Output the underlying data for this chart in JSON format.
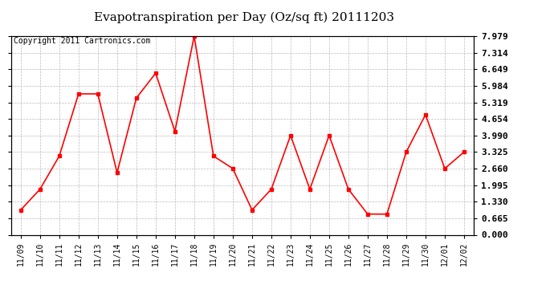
{
  "title": "Evapotranspiration per Day (Oz/sq ft) 20111203",
  "copyright": "Copyright 2011 Cartronics.com",
  "x_labels": [
    "11/09",
    "11/10",
    "11/11",
    "11/12",
    "11/13",
    "11/14",
    "11/15",
    "11/16",
    "11/17",
    "11/18",
    "11/19",
    "11/20",
    "11/21",
    "11/22",
    "11/23",
    "11/24",
    "11/25",
    "11/26",
    "11/27",
    "11/28",
    "11/29",
    "11/30",
    "12/01",
    "12/02"
  ],
  "y_values": [
    0.998,
    1.83,
    3.162,
    5.66,
    5.66,
    2.496,
    5.494,
    6.49,
    4.155,
    7.979,
    3.162,
    2.662,
    0.998,
    1.83,
    3.99,
    1.83,
    3.99,
    1.83,
    0.831,
    0.831,
    3.325,
    4.822,
    2.66,
    3.325
  ],
  "line_color": "#ff0000",
  "marker": "s",
  "marker_size": 3,
  "background_color": "#ffffff",
  "grid_color": "#bbbbbb",
  "ylim": [
    0.0,
    7.979
  ],
  "yticks": [
    0.0,
    0.665,
    1.33,
    1.995,
    2.66,
    3.325,
    3.99,
    4.654,
    5.319,
    5.984,
    6.649,
    7.314,
    7.979
  ],
  "title_fontsize": 11,
  "copyright_fontsize": 7,
  "tick_fontsize": 8,
  "xtick_fontsize": 7
}
